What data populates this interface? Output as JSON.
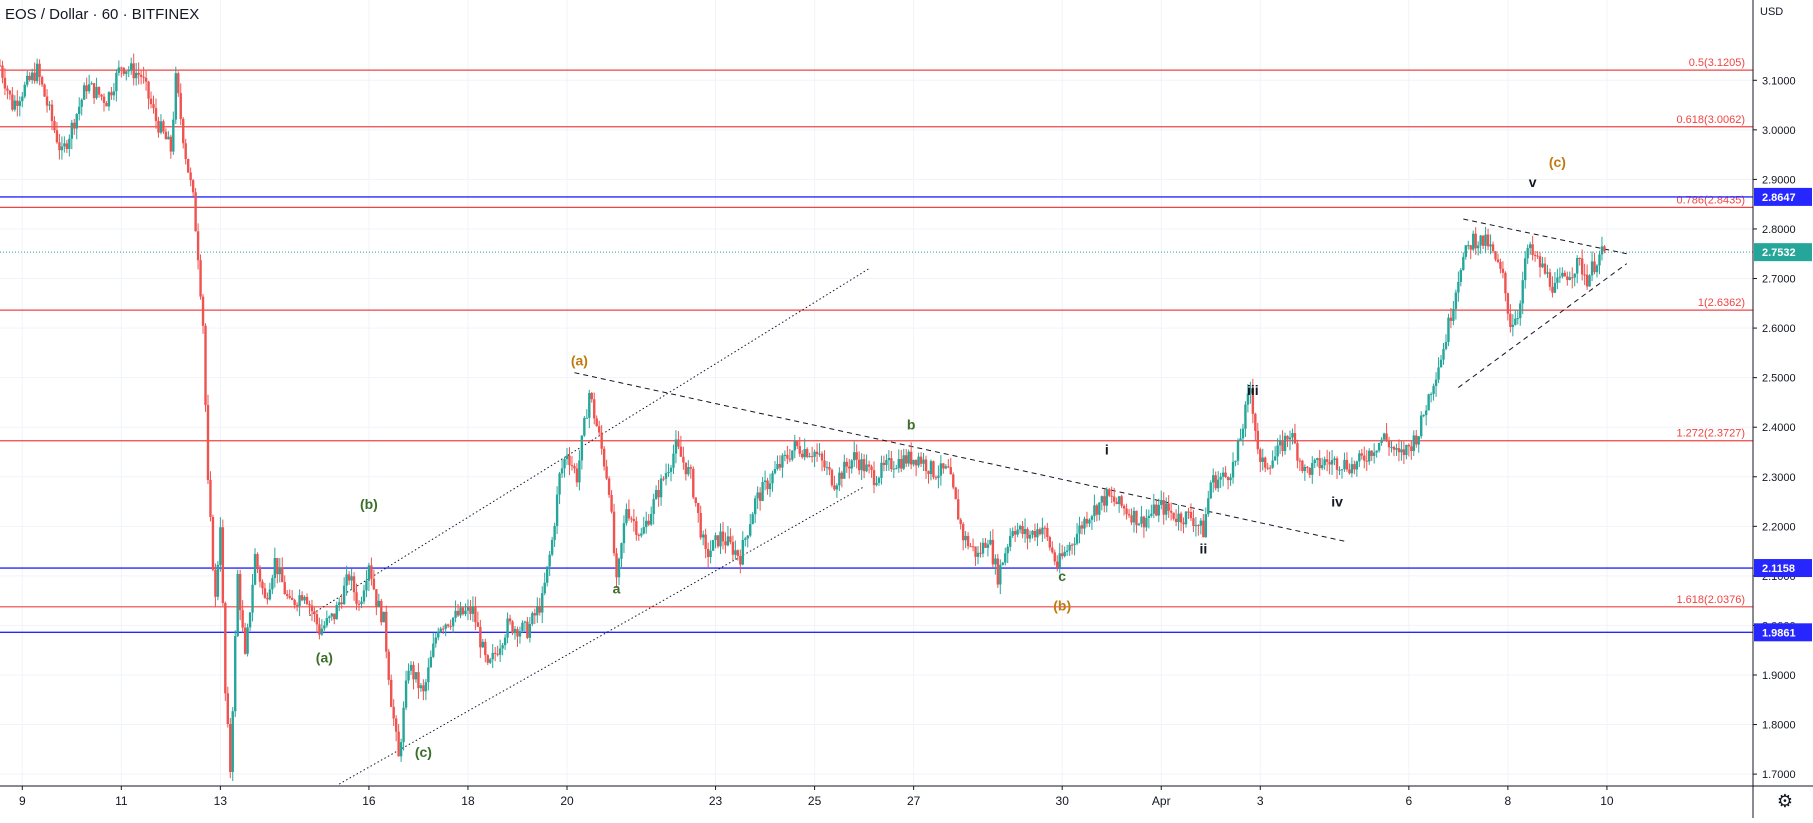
{
  "header": {
    "symbol": "EOS / Dollar",
    "interval": "60",
    "exchange": "BITFINEX",
    "currency": "USD"
  },
  "colors": {
    "up": "#26a69a",
    "down": "#ef5350",
    "fib_line": "#ef4444",
    "fib_text": "#ef4444",
    "hline": "#2626ff",
    "last_price": "#26a69a",
    "wave_orange": "#c07a10",
    "wave_green": "#3b6e2a",
    "wave_black": "#131722",
    "grid": "#f0f3fa"
  },
  "icons": {
    "settings": "gear-icon"
  },
  "chart_data": {
    "type": "candlestick",
    "series_name": "EOS / Dollar",
    "interval": "60",
    "exchange": "BITFINEX",
    "currency": "USD",
    "x_ticks": [
      {
        "label": "9",
        "day": 9
      },
      {
        "label": "11",
        "day": 11
      },
      {
        "label": "13",
        "day": 13
      },
      {
        "label": "16",
        "day": 16
      },
      {
        "label": "18",
        "day": 18
      },
      {
        "label": "20",
        "day": 20
      },
      {
        "label": "23",
        "day": 23
      },
      {
        "label": "25",
        "day": 25
      },
      {
        "label": "27",
        "day": 27
      },
      {
        "label": "30",
        "day": 30
      },
      {
        "label": "Apr",
        "day": 32
      },
      {
        "label": "3",
        "day": 34
      },
      {
        "label": "6",
        "day": 37
      },
      {
        "label": "8",
        "day": 39
      },
      {
        "label": "10",
        "day": 41
      }
    ],
    "y_ticks": [
      "3.1000",
      "3.0000",
      "2.9000",
      "2.8000",
      "2.7000",
      "2.6000",
      "2.5000",
      "2.4000",
      "2.3000",
      "2.2000",
      "2.1000",
      "2.0000",
      "1.9000",
      "1.8000",
      "1.7000"
    ],
    "ylim": [
      1.676,
      3.262
    ],
    "xlim": [
      8.55,
      43.95
    ],
    "price_path": [
      [
        8.55,
        3.13
      ],
      [
        8.8,
        3.05
      ],
      [
        9.3,
        3.12
      ],
      [
        9.8,
        2.95
      ],
      [
        10.3,
        3.09
      ],
      [
        10.7,
        3.06
      ],
      [
        11.0,
        3.13
      ],
      [
        11.4,
        3.11
      ],
      [
        11.7,
        3.02
      ],
      [
        12.0,
        2.96
      ],
      [
        12.1,
        3.1
      ],
      [
        12.3,
        2.95
      ],
      [
        12.45,
        2.86
      ],
      [
        12.55,
        2.75
      ],
      [
        12.65,
        2.61
      ],
      [
        12.75,
        2.28
      ],
      [
        12.9,
        2.05
      ],
      [
        13.0,
        2.21
      ],
      [
        13.1,
        1.86
      ],
      [
        13.2,
        1.71
      ],
      [
        13.35,
        2.1
      ],
      [
        13.5,
        1.93
      ],
      [
        13.7,
        2.14
      ],
      [
        13.9,
        2.05
      ],
      [
        14.1,
        2.13
      ],
      [
        14.4,
        2.04
      ],
      [
        14.7,
        2.07
      ],
      [
        15.0,
        1.99
      ],
      [
        15.3,
        2.02
      ],
      [
        15.6,
        2.1
      ],
      [
        15.8,
        2.04
      ],
      [
        16.0,
        2.13
      ],
      [
        16.15,
        2.05
      ],
      [
        16.3,
        2.01
      ],
      [
        16.45,
        1.85
      ],
      [
        16.6,
        1.73
      ],
      [
        16.8,
        1.92
      ],
      [
        17.1,
        1.86
      ],
      [
        17.4,
        2.0
      ],
      [
        17.8,
        2.02
      ],
      [
        18.1,
        2.03
      ],
      [
        18.4,
        1.91
      ],
      [
        18.8,
        2.0
      ],
      [
        19.2,
        1.99
      ],
      [
        19.5,
        2.05
      ],
      [
        19.7,
        2.17
      ],
      [
        19.85,
        2.3
      ],
      [
        20.0,
        2.35
      ],
      [
        20.2,
        2.3
      ],
      [
        20.45,
        2.47
      ],
      [
        20.65,
        2.38
      ],
      [
        20.85,
        2.28
      ],
      [
        21.0,
        2.08
      ],
      [
        21.2,
        2.24
      ],
      [
        21.5,
        2.18
      ],
      [
        21.8,
        2.26
      ],
      [
        22.2,
        2.36
      ],
      [
        22.5,
        2.3
      ],
      [
        22.8,
        2.14
      ],
      [
        23.1,
        2.18
      ],
      [
        23.5,
        2.14
      ],
      [
        23.8,
        2.25
      ],
      [
        24.2,
        2.31
      ],
      [
        24.6,
        2.36
      ],
      [
        25.0,
        2.35
      ],
      [
        25.4,
        2.29
      ],
      [
        25.8,
        2.34
      ],
      [
        26.2,
        2.3
      ],
      [
        26.6,
        2.33
      ],
      [
        27.1,
        2.34
      ],
      [
        27.4,
        2.31
      ],
      [
        27.7,
        2.31
      ],
      [
        28.0,
        2.18
      ],
      [
        28.3,
        2.14
      ],
      [
        28.5,
        2.18
      ],
      [
        28.7,
        2.1
      ],
      [
        29.0,
        2.2
      ],
      [
        29.3,
        2.18
      ],
      [
        29.6,
        2.2
      ],
      [
        29.9,
        2.12
      ],
      [
        30.2,
        2.17
      ],
      [
        30.5,
        2.22
      ],
      [
        30.9,
        2.26
      ],
      [
        31.2,
        2.24
      ],
      [
        31.6,
        2.21
      ],
      [
        32.0,
        2.24
      ],
      [
        32.3,
        2.22
      ],
      [
        32.6,
        2.22
      ],
      [
        32.85,
        2.19
      ],
      [
        33.0,
        2.29
      ],
      [
        33.3,
        2.3
      ],
      [
        33.5,
        2.33
      ],
      [
        33.8,
        2.48
      ],
      [
        34.0,
        2.32
      ],
      [
        34.3,
        2.34
      ],
      [
        34.6,
        2.39
      ],
      [
        34.9,
        2.31
      ],
      [
        35.3,
        2.33
      ],
      [
        35.6,
        2.33
      ],
      [
        35.9,
        2.32
      ],
      [
        36.2,
        2.35
      ],
      [
        36.5,
        2.38
      ],
      [
        36.8,
        2.34
      ],
      [
        37.0,
        2.36
      ],
      [
        37.2,
        2.39
      ],
      [
        37.45,
        2.48
      ],
      [
        37.7,
        2.56
      ],
      [
        37.85,
        2.63
      ],
      [
        38.05,
        2.73
      ],
      [
        38.3,
        2.78
      ],
      [
        38.6,
        2.77
      ],
      [
        38.9,
        2.7
      ],
      [
        39.05,
        2.61
      ],
      [
        39.2,
        2.63
      ],
      [
        39.4,
        2.76
      ],
      [
        39.7,
        2.72
      ],
      [
        39.95,
        2.68
      ],
      [
        40.2,
        2.71
      ],
      [
        40.45,
        2.73
      ],
      [
        40.6,
        2.7
      ],
      [
        40.8,
        2.74
      ],
      [
        40.95,
        2.7532
      ]
    ],
    "fib_levels": [
      {
        "label": "0.5(3.1205)",
        "value": 3.1205
      },
      {
        "label": "0.618(3.0062)",
        "value": 3.0062
      },
      {
        "label": "0.786(2.8435)",
        "value": 2.8435
      },
      {
        "label": "1(2.6362)",
        "value": 2.6362
      },
      {
        "label": "1.272(2.3727)",
        "value": 2.3727
      },
      {
        "label": "1.618(2.0376)",
        "value": 2.0376
      }
    ],
    "horizontal_lines": [
      {
        "label": "2.8647",
        "value": 2.8647
      },
      {
        "label": "2.1158",
        "value": 2.1158
      },
      {
        "label": "1.9861",
        "value": 1.9861
      }
    ],
    "last_price": {
      "label": "2.7532",
      "value": 2.7532
    },
    "trendlines": [
      {
        "style": "dotted",
        "from": [
          14.8,
          2.02
        ],
        "to": [
          26.1,
          2.72
        ]
      },
      {
        "style": "dotted",
        "from": [
          15.4,
          1.68
        ],
        "to": [
          26.0,
          2.28
        ]
      },
      {
        "style": "dashed",
        "from": [
          20.15,
          2.51
        ],
        "to": [
          35.7,
          2.17
        ]
      },
      {
        "style": "dashed",
        "from": [
          38.1,
          2.82
        ],
        "to": [
          41.4,
          2.75
        ]
      },
      {
        "style": "dashed",
        "from": [
          38.0,
          2.48
        ],
        "to": [
          41.4,
          2.73
        ]
      }
    ],
    "wave_labels": [
      {
        "text": "(a)",
        "x": 20.25,
        "y": 2.535,
        "color": "orange"
      },
      {
        "text": "(b)",
        "x": 30.0,
        "y": 2.04,
        "color": "orange"
      },
      {
        "text": "(c)",
        "x": 40.0,
        "y": 2.935,
        "color": "orange"
      },
      {
        "text": "(b)",
        "x": 16.0,
        "y": 2.245,
        "color": "green"
      },
      {
        "text": "(a)",
        "x": 15.1,
        "y": 1.935,
        "color": "green"
      },
      {
        "text": "(c)",
        "x": 17.1,
        "y": 1.745,
        "color": "green"
      },
      {
        "text": "a",
        "x": 21.0,
        "y": 2.075,
        "color": "green"
      },
      {
        "text": "b",
        "x": 26.95,
        "y": 2.405,
        "color": "green"
      },
      {
        "text": "c",
        "x": 30.0,
        "y": 2.1,
        "color": "green"
      },
      {
        "text": "i",
        "x": 30.9,
        "y": 2.355,
        "color": "black"
      },
      {
        "text": "ii",
        "x": 32.85,
        "y": 2.155,
        "color": "black"
      },
      {
        "text": "iii",
        "x": 33.85,
        "y": 2.475,
        "color": "black"
      },
      {
        "text": "iv",
        "x": 35.55,
        "y": 2.25,
        "color": "black"
      },
      {
        "text": "v",
        "x": 39.5,
        "y": 2.895,
        "color": "black"
      }
    ]
  }
}
